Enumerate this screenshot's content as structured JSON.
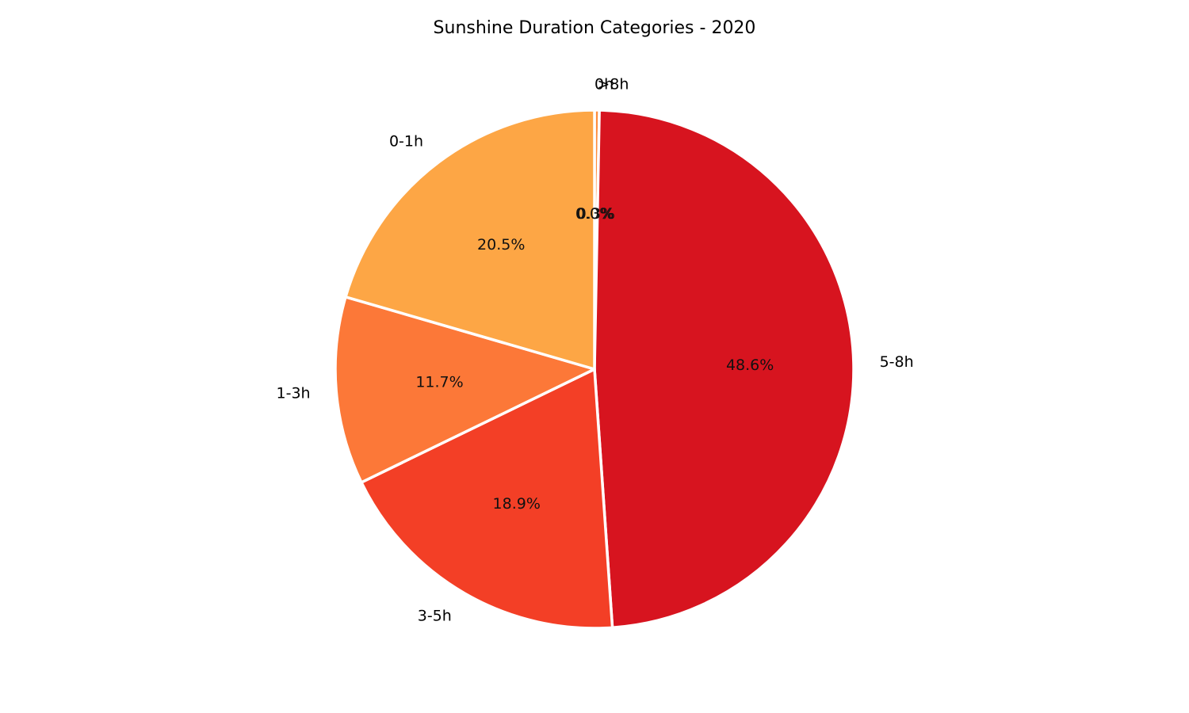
{
  "chart_data": {
    "type": "pie",
    "title": "Sunshine Duration Categories - 2020",
    "start_angle_deg": 90,
    "direction": "clockwise",
    "slices": [
      {
        "label": "0h",
        "value": 0.0,
        "pct_label": "0.0%",
        "color": "#fee5a8"
      },
      {
        "label": ">8h",
        "value": 0.3,
        "pct_label": "0.3%",
        "color": "#fd8d3c"
      },
      {
        "label": "5-8h",
        "value": 48.6,
        "pct_label": "48.6%",
        "color": "#d7141f"
      },
      {
        "label": "3-5h",
        "value": 18.9,
        "pct_label": "18.9%",
        "color": "#f33f26"
      },
      {
        "label": "1-3h",
        "value": 11.7,
        "pct_label": "11.7%",
        "color": "#fc7838"
      },
      {
        "label": "0-1h",
        "value": 20.5,
        "pct_label": "20.5%",
        "color": "#fda645"
      }
    ],
    "edge_color": "#ffffff",
    "legend": "none",
    "grid": false
  }
}
